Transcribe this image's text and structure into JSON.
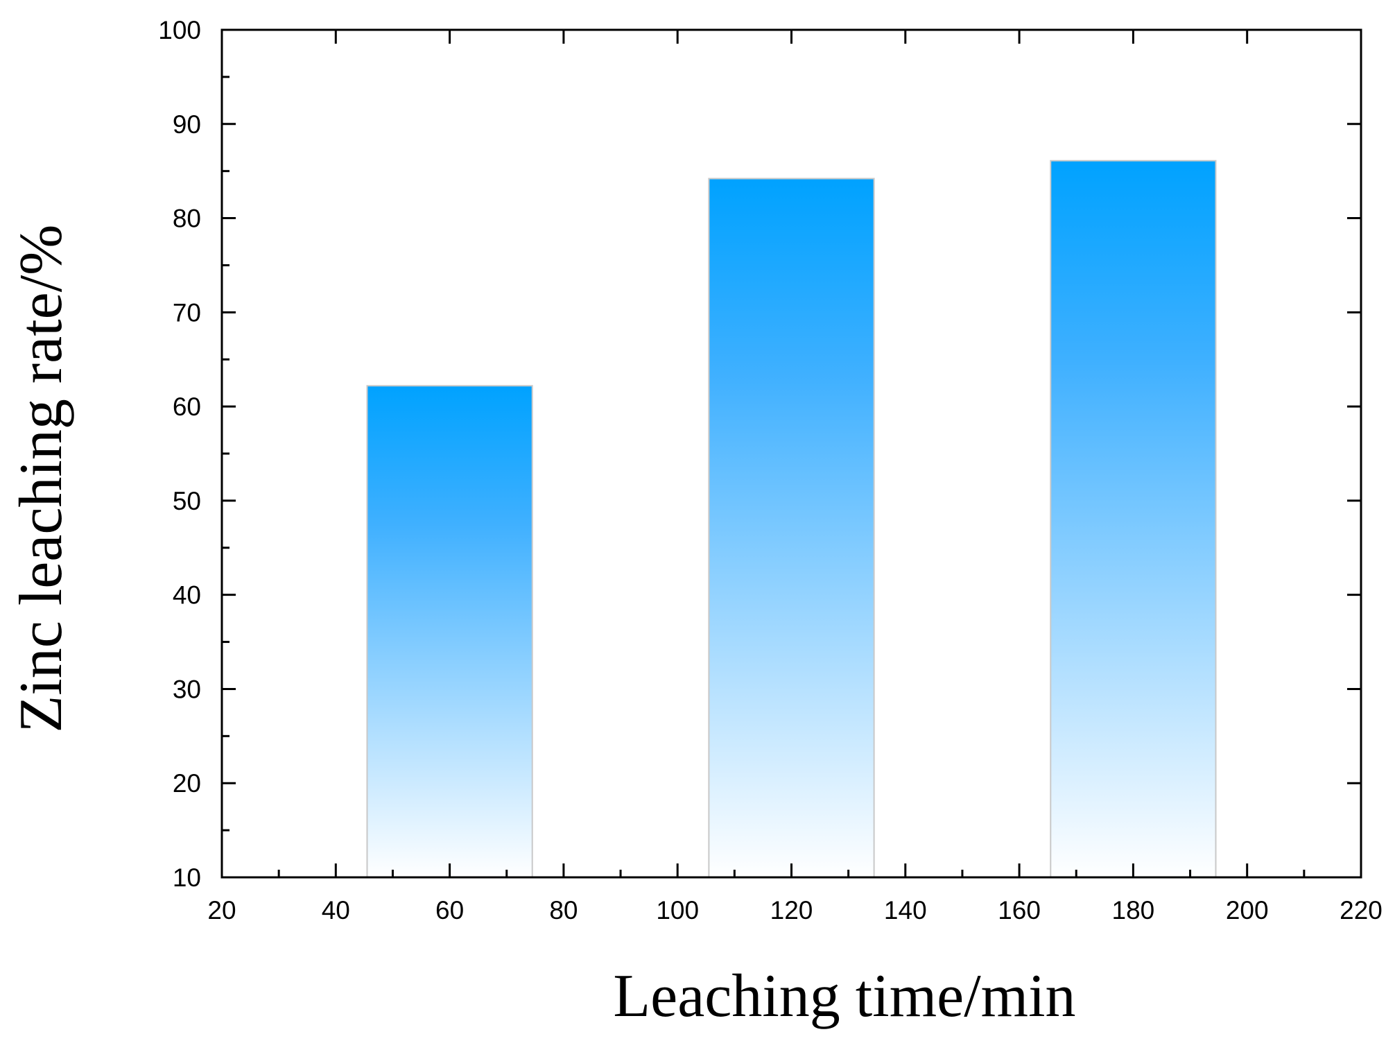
{
  "chart_data": {
    "type": "bar",
    "title": "",
    "xlabel": "Leaching time/min",
    "ylabel": "Zinc leaching rate/%",
    "x": [
      60,
      120,
      180
    ],
    "values": [
      62.2,
      84.2,
      86.1
    ],
    "bar_width": 29,
    "xlim": [
      20,
      220
    ],
    "ylim": [
      10,
      100
    ],
    "xticks": [
      20,
      40,
      60,
      80,
      100,
      120,
      140,
      160,
      180,
      200,
      220
    ],
    "yticks": [
      10,
      20,
      30,
      40,
      50,
      60,
      70,
      80,
      90,
      100
    ],
    "grid": false,
    "legend": "none",
    "colors": {
      "bar_top": "#00a2ff",
      "bar_bottom": "#ffffff",
      "bar_edge": "#c8c8c8",
      "axis": "#000000"
    }
  }
}
